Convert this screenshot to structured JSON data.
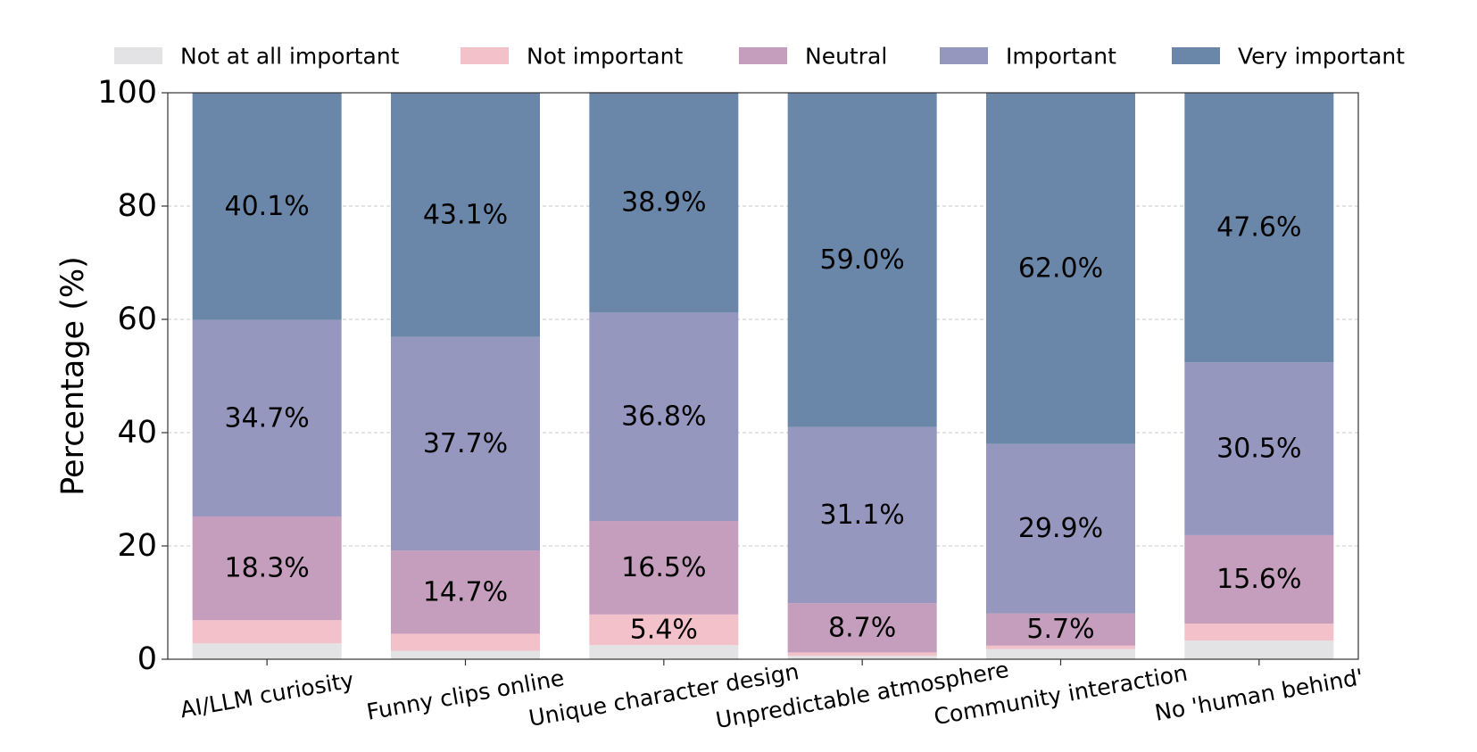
{
  "chart_data": {
    "type": "bar",
    "stacked": true,
    "title": "",
    "xlabel": "",
    "ylabel": "Percentage (%)",
    "ylim": [
      0,
      100
    ],
    "yticks": [
      "0",
      "20",
      "40",
      "60",
      "80",
      "100"
    ],
    "grid": "horizontal dashed",
    "legend_position": "top",
    "categories": [
      "AI/LLM curiosity",
      "Funny clips online",
      "Unique character design",
      "Unpredictable atmosphere",
      "Community interaction",
      "No 'human behind'"
    ],
    "series": [
      {
        "name": "Not at all important",
        "color": "#e3e2e5",
        "values": [
          2.8,
          1.5,
          2.5,
          0.6,
          1.8,
          3.3
        ]
      },
      {
        "name": "Not important",
        "color": "#f2c1c9",
        "values": [
          4.1,
          3.0,
          5.4,
          0.6,
          0.6,
          3.0
        ]
      },
      {
        "name": "Neutral",
        "color": "#c59dbd",
        "values": [
          18.3,
          14.7,
          16.5,
          8.7,
          5.7,
          15.6
        ]
      },
      {
        "name": "Important",
        "color": "#9697bf",
        "values": [
          34.7,
          37.7,
          36.8,
          31.1,
          29.9,
          30.5
        ]
      },
      {
        "name": "Very important",
        "color": "#6a86a8",
        "values": [
          40.1,
          43.1,
          38.9,
          59.0,
          62.0,
          47.6
        ]
      }
    ],
    "data_labels": [
      {
        "category": 0,
        "series": 2,
        "text": "18.3%"
      },
      {
        "category": 0,
        "series": 3,
        "text": "34.7%"
      },
      {
        "category": 0,
        "series": 4,
        "text": "40.1%"
      },
      {
        "category": 1,
        "series": 2,
        "text": "14.7%"
      },
      {
        "category": 1,
        "series": 3,
        "text": "37.7%"
      },
      {
        "category": 1,
        "series": 4,
        "text": "43.1%"
      },
      {
        "category": 2,
        "series": 1,
        "text": "5.4%"
      },
      {
        "category": 2,
        "series": 2,
        "text": "16.5%"
      },
      {
        "category": 2,
        "series": 3,
        "text": "36.8%"
      },
      {
        "category": 2,
        "series": 4,
        "text": "38.9%"
      },
      {
        "category": 3,
        "series": 2,
        "text": "8.7%"
      },
      {
        "category": 3,
        "series": 3,
        "text": "31.1%"
      },
      {
        "category": 3,
        "series": 4,
        "text": "59.0%"
      },
      {
        "category": 4,
        "series": 2,
        "text": "5.7%"
      },
      {
        "category": 4,
        "series": 3,
        "text": "29.9%"
      },
      {
        "category": 4,
        "series": 4,
        "text": "62.0%"
      },
      {
        "category": 5,
        "series": 2,
        "text": "15.6%"
      },
      {
        "category": 5,
        "series": 3,
        "text": "30.5%"
      },
      {
        "category": 5,
        "series": 4,
        "text": "47.6%"
      }
    ]
  }
}
